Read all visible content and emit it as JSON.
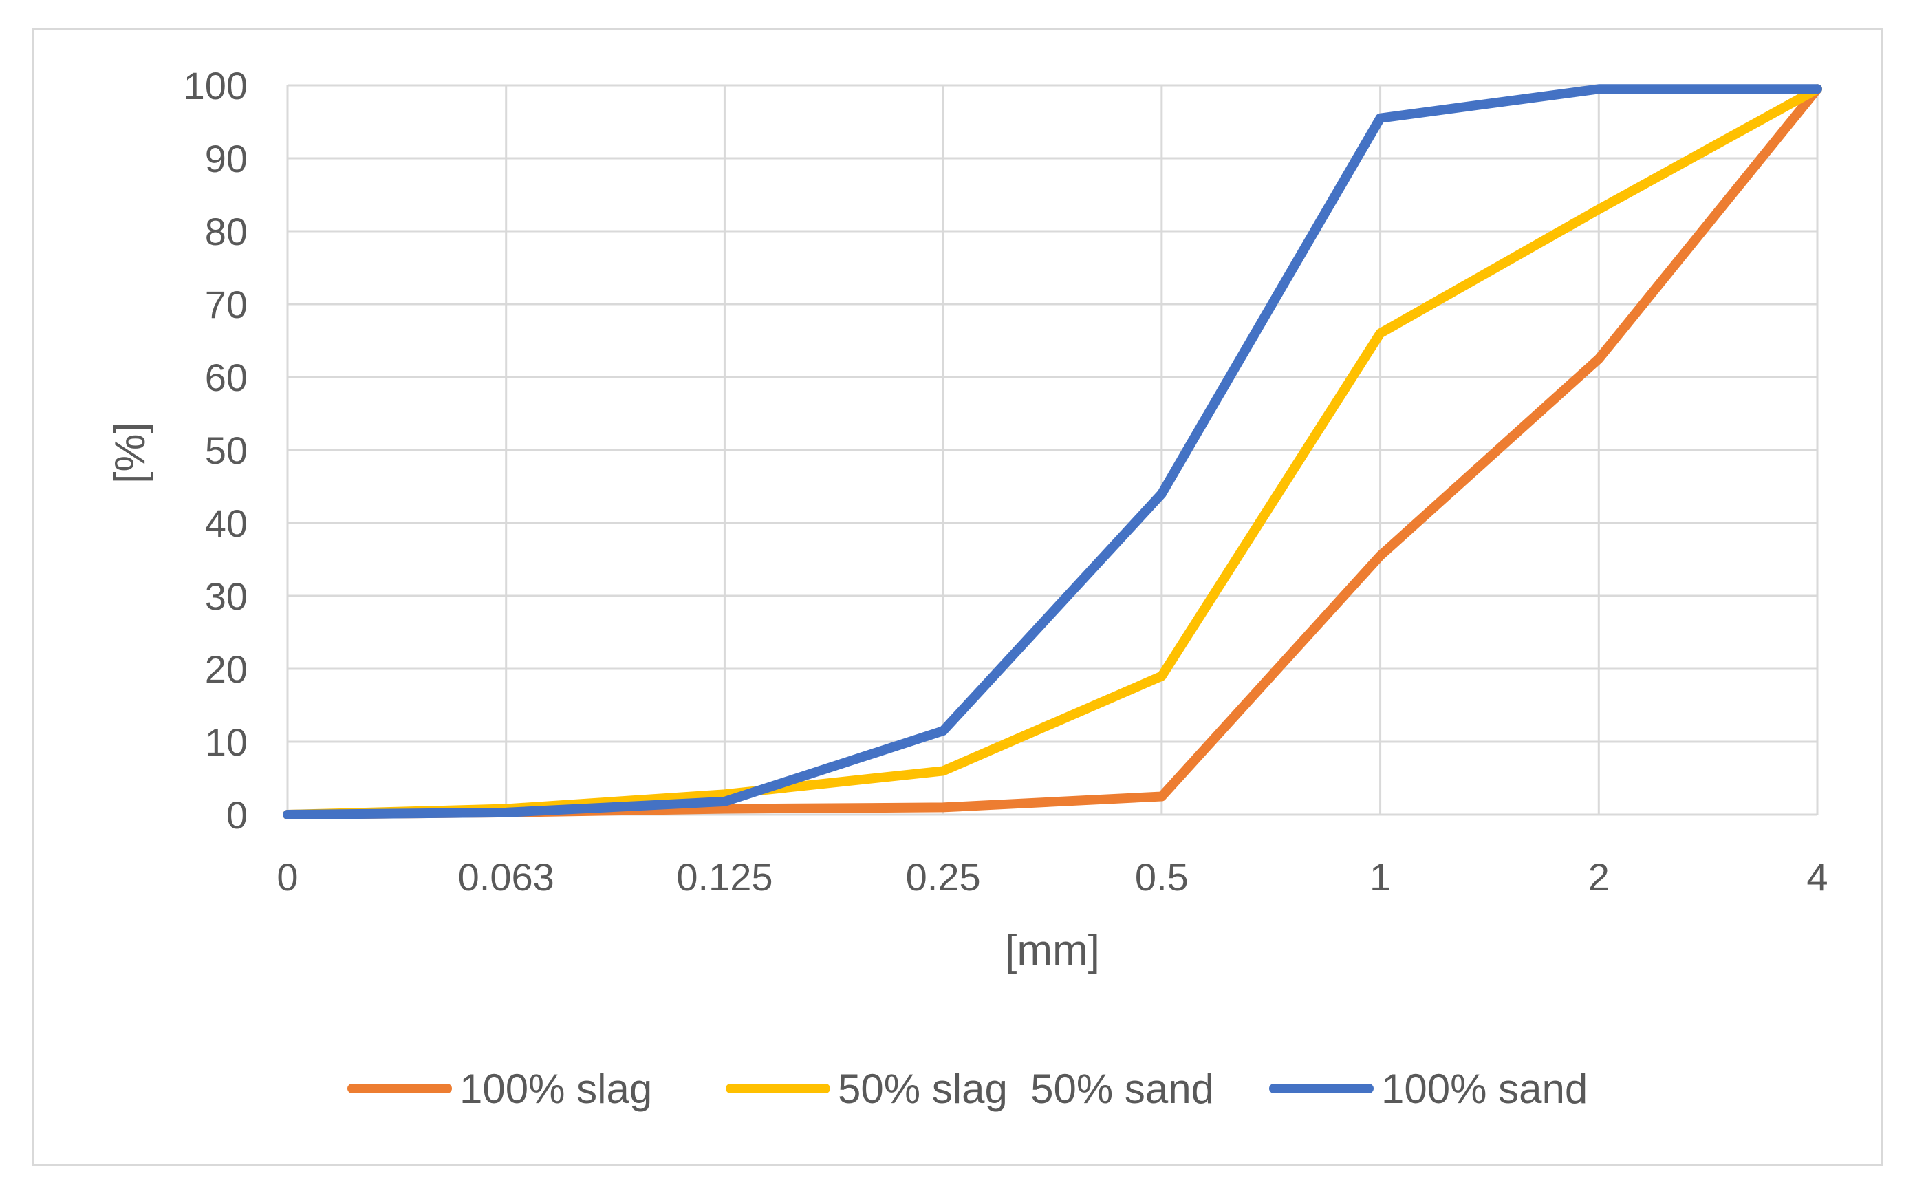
{
  "chart_data": {
    "type": "line",
    "title": "",
    "xlabel": "[mm]",
    "ylabel": "[%]",
    "categories": [
      "0",
      "0.063",
      "0.125",
      "0.25",
      "0.5",
      "1",
      "2",
      "4"
    ],
    "ylim": [
      0,
      100
    ],
    "yticks": [
      0,
      10,
      20,
      30,
      40,
      50,
      60,
      70,
      80,
      90,
      100
    ],
    "grid": true,
    "legend_position": "bottom",
    "series": [
      {
        "name": "100% slag",
        "color": "#ED7D31",
        "values": [
          0,
          0.3,
          0.8,
          1,
          2.5,
          35.5,
          62.5,
          99.5
        ]
      },
      {
        "name": "50% slag  50% sand",
        "color": "#FFC000",
        "values": [
          0,
          0.8,
          2.8,
          6,
          19,
          66,
          83,
          99.5
        ]
      },
      {
        "name": "100% sand",
        "color": "#4472C4",
        "values": [
          0,
          0.3,
          1.8,
          11.5,
          44,
          95.5,
          99.5,
          99.5
        ]
      }
    ]
  }
}
